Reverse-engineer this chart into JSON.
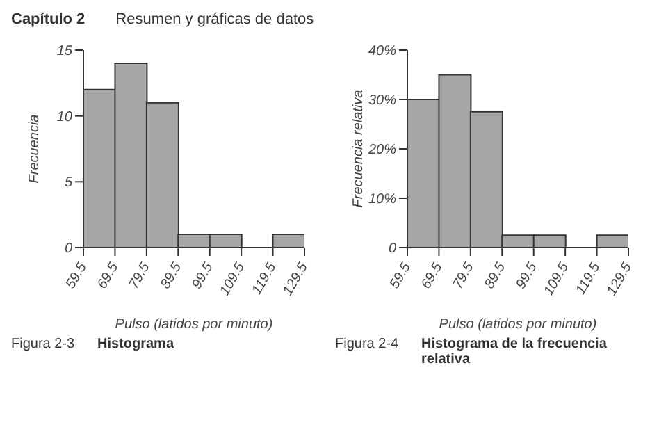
{
  "chart_data": [
    {
      "type": "histogram",
      "bins": [
        59.5,
        69.5,
        79.5,
        89.5,
        99.5,
        109.5,
        119.5,
        129.5
      ],
      "values": [
        12,
        14,
        11,
        1,
        1,
        0,
        1
      ],
      "color": "#a6a6a6",
      "xlabel": "Pulso (latidos por minuto)",
      "ylabel": "Frecuencia",
      "xlim": [
        59.5,
        129.5
      ],
      "xticks": [
        59.5,
        69.5,
        79.5,
        89.5,
        99.5,
        109.5,
        119.5,
        129.5
      ],
      "ylim": [
        0,
        15
      ],
      "yticks": [
        0,
        5,
        10,
        15
      ],
      "annotations": [
        "Capítulo 2",
        "Resumen y gráficas de datos",
        "Figura 2-3",
        "Histograma"
      ]
    },
    {
      "type": "histogram",
      "bins": [
        59.5,
        69.5,
        79.5,
        89.5,
        99.5,
        109.5,
        119.5,
        129.5
      ],
      "values": [
        30,
        35,
        27.5,
        2.5,
        2.5,
        0,
        2.5
      ],
      "color": "#a6a6a6",
      "xlabel": "Pulso (latidos por minuto)",
      "ylabel": "Frecuencia relativa",
      "xlim": [
        59.5,
        129.5
      ],
      "xticks": [
        59.5,
        69.5,
        79.5,
        89.5,
        99.5,
        109.5,
        119.5,
        129.5
      ],
      "ylim": [
        0,
        40
      ],
      "yticks": [
        0,
        {
          "value": 10,
          "label": "10%"
        },
        {
          "value": 20,
          "label": "20%"
        },
        {
          "value": 30,
          "label": "30%"
        },
        {
          "value": 40,
          "label": "40%"
        }
      ],
      "annotations": [
        "Figura 2-4",
        "Histograma de la frecuencia relativa"
      ]
    }
  ]
}
